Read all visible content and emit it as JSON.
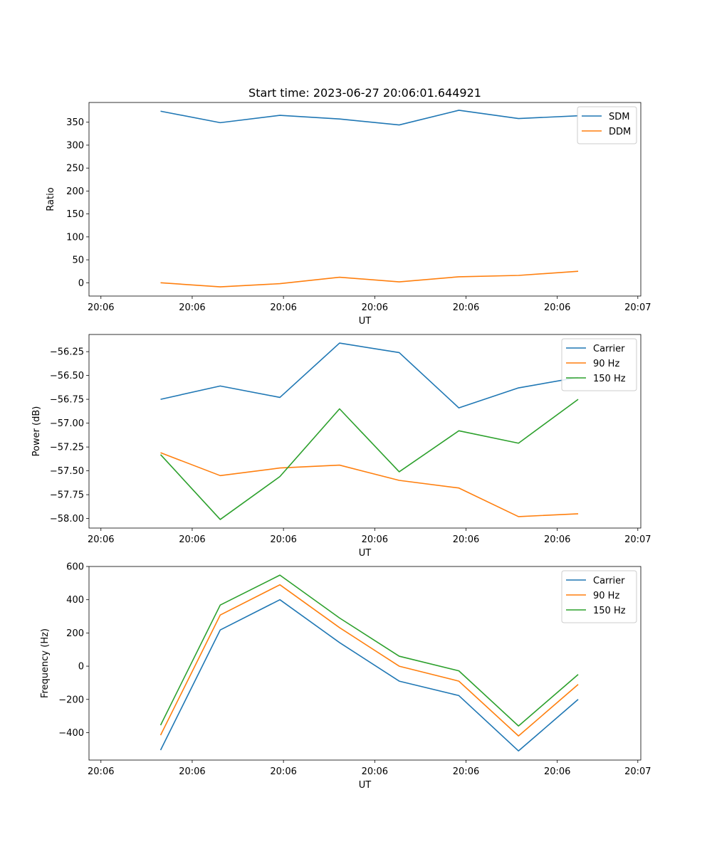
{
  "figure": {
    "title": "Start time: 2023-06-27 20:06:01.644921"
  },
  "colors": {
    "blue": "#1f77b4",
    "orange": "#ff7f0e",
    "green": "#2ca02c"
  },
  "chart_data": [
    {
      "type": "line",
      "title": "Start time: 2023-06-27 20:06:01.644921",
      "xlabel": "UT",
      "ylabel": "Ratio",
      "x": [
        1,
        2,
        3,
        4,
        5,
        6,
        7,
        8
      ],
      "xlim": [
        -0.2,
        9.05
      ],
      "xticks": [
        0,
        1.53,
        3.06,
        4.59,
        6.12,
        7.65,
        9.0
      ],
      "xtick_labels": [
        "20:06",
        "20:06",
        "20:06",
        "20:06",
        "20:06",
        "20:06",
        "20:07"
      ],
      "ylim": [
        -29,
        393
      ],
      "yticks": [
        0,
        50,
        100,
        150,
        200,
        250,
        300,
        350
      ],
      "ytick_labels": [
        "0",
        "50",
        "100",
        "150",
        "200",
        "250",
        "300",
        "350"
      ],
      "legend": "top-right",
      "series": [
        {
          "name": "SDM",
          "color": "#1f77b4",
          "values": [
            374,
            349,
            365,
            357,
            344,
            376,
            358,
            364
          ]
        },
        {
          "name": "DDM",
          "color": "#ff7f0e",
          "values": [
            0,
            -9,
            -2,
            12,
            2,
            13,
            16,
            25
          ]
        }
      ]
    },
    {
      "type": "line",
      "title": "",
      "xlabel": "UT",
      "ylabel": "Power (dB)",
      "x": [
        1,
        2,
        3,
        4,
        5,
        6,
        7,
        8
      ],
      "xlim": [
        -0.2,
        9.05
      ],
      "xticks": [
        0,
        1.53,
        3.06,
        4.59,
        6.12,
        7.65,
        9.0
      ],
      "xtick_labels": [
        "20:06",
        "20:06",
        "20:06",
        "20:06",
        "20:06",
        "20:06",
        "20:07"
      ],
      "ylim": [
        -58.1,
        -56.07
      ],
      "yticks": [
        -58.0,
        -57.75,
        -57.5,
        -57.25,
        -57.0,
        -56.75,
        -56.5,
        -56.25
      ],
      "ytick_labels": [
        "−58.00",
        "−57.75",
        "−57.50",
        "−57.25",
        "−57.00",
        "−56.75",
        "−56.50",
        "−56.25"
      ],
      "legend": "top-right",
      "series": [
        {
          "name": "Carrier",
          "color": "#1f77b4",
          "values": [
            -56.75,
            -56.61,
            -56.73,
            -56.16,
            -56.26,
            -56.84,
            -56.63,
            -56.52
          ]
        },
        {
          "name": "90 Hz",
          "color": "#ff7f0e",
          "values": [
            -57.31,
            -57.55,
            -57.47,
            -57.44,
            -57.6,
            -57.68,
            -57.98,
            -57.95
          ]
        },
        {
          "name": "150 Hz",
          "color": "#2ca02c",
          "values": [
            -57.33,
            -58.01,
            -57.56,
            -56.85,
            -57.51,
            -57.08,
            -57.21,
            -56.75
          ]
        }
      ]
    },
    {
      "type": "line",
      "title": "",
      "xlabel": "UT",
      "ylabel": "Frequency (Hz)",
      "x": [
        1,
        2,
        3,
        4,
        5,
        6,
        7,
        8
      ],
      "xlim": [
        -0.2,
        9.05
      ],
      "xticks": [
        0,
        1.53,
        3.06,
        4.59,
        6.12,
        7.65,
        9.0
      ],
      "xtick_labels": [
        "20:06",
        "20:06",
        "20:06",
        "20:06",
        "20:06",
        "20:06",
        "20:07"
      ],
      "ylim": [
        -565,
        600
      ],
      "yticks": [
        -400,
        -200,
        0,
        200,
        400,
        600
      ],
      "ytick_labels": [
        "−400",
        "−200",
        "0",
        "200",
        "400",
        "600"
      ],
      "legend": "top-right",
      "series": [
        {
          "name": "Carrier",
          "color": "#1f77b4",
          "values": [
            -505,
            218,
            400,
            142,
            -90,
            -177,
            -510,
            -200
          ]
        },
        {
          "name": "90 Hz",
          "color": "#ff7f0e",
          "values": [
            -415,
            308,
            490,
            232,
            0,
            -90,
            -420,
            -110
          ]
        },
        {
          "name": "150 Hz",
          "color": "#2ca02c",
          "values": [
            -355,
            368,
            548,
            290,
            60,
            -28,
            -360,
            -50
          ]
        }
      ]
    }
  ]
}
